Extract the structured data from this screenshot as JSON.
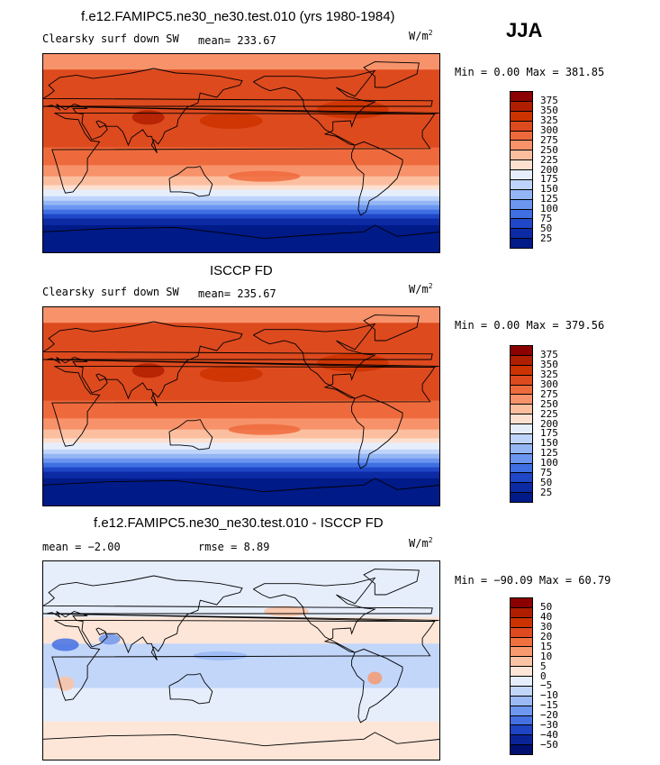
{
  "season": "JJA",
  "panels": [
    {
      "title": "f.e12.FAMIPC5.ne30_ne30.test.010 (yrs 1980-1984)",
      "left_label": "Clearsky surf down SW",
      "center_label": "mean= 233.67",
      "units": "W/m",
      "units_sup": "2",
      "minmax": "Min =    0.00 Max = 381.85",
      "levels": [
        "375",
        "350",
        "325",
        "300",
        "275",
        "250",
        "225",
        "200",
        "175",
        "150",
        "125",
        "100",
        "75",
        "50",
        "25"
      ],
      "colors": [
        "#8b0000",
        "#b01e00",
        "#cc3300",
        "#dd4a1e",
        "#ee6a3c",
        "#f7926a",
        "#fbbfa0",
        "#fde0d0",
        "#e6eefc",
        "#bfd4fa",
        "#94b6f5",
        "#6b95ef",
        "#3f6fe3",
        "#1f47c7",
        "#0d2aa5",
        "#001a88"
      ]
    },
    {
      "title": "ISCCP FD",
      "left_label": "Clearsky surf down SW",
      "center_label": "mean= 235.67",
      "units": "W/m",
      "units_sup": "2",
      "minmax": "Min =    0.00 Max = 379.56",
      "levels": [
        "375",
        "350",
        "325",
        "300",
        "275",
        "250",
        "225",
        "200",
        "175",
        "150",
        "125",
        "100",
        "75",
        "50",
        "25"
      ],
      "colors": [
        "#8b0000",
        "#b01e00",
        "#cc3300",
        "#dd4a1e",
        "#ee6a3c",
        "#f7926a",
        "#fbbfa0",
        "#fde0d0",
        "#e6eefc",
        "#bfd4fa",
        "#94b6f5",
        "#6b95ef",
        "#3f6fe3",
        "#1f47c7",
        "#0d2aa5",
        "#001a88"
      ]
    },
    {
      "title": "f.e12.FAMIPC5.ne30_ne30.test.010 - ISCCP FD",
      "left_label": "mean =  −2.00",
      "center_label": "rmse =   8.89",
      "units": "W/m",
      "units_sup": "2",
      "minmax": "Min = −90.09 Max =  60.79",
      "levels": [
        "50",
        "40",
        "30",
        "20",
        "15",
        "10",
        "5",
        "0",
        "−5",
        "−10",
        "−15",
        "−20",
        "−30",
        "−40",
        "−50"
      ],
      "colors": [
        "#8b0000",
        "#b01e00",
        "#cc3300",
        "#e04a20",
        "#f07040",
        "#f79a70",
        "#fbc3a5",
        "#fde6d8",
        "#e6eefc",
        "#c2d6fa",
        "#9ab9f5",
        "#6e97ef",
        "#4470e2",
        "#1f45c4",
        "#0a2497",
        "#001070"
      ]
    }
  ]
}
